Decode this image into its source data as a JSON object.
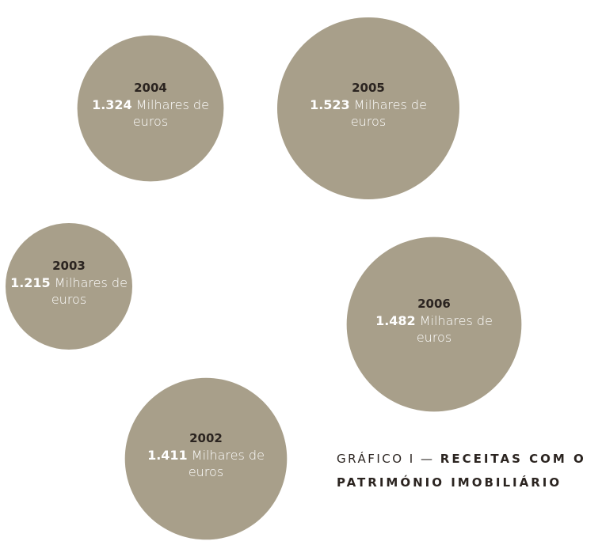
{
  "chart_data": {
    "type": "bubble",
    "title_prefix": "GRÁFICO I —",
    "title": "RECEITAS COM O PATRIMÓNIO IMOBILIÁRIO",
    "unit": "Milhares de euros",
    "color": "#a89f8a",
    "categories": [
      "2002",
      "2003",
      "2004",
      "2005",
      "2006"
    ],
    "values": [
      1411,
      1215,
      1324,
      1523,
      1482
    ],
    "value_labels": [
      "1.411",
      "1.215",
      "1.324",
      "1.523",
      "1.482"
    ]
  }
}
